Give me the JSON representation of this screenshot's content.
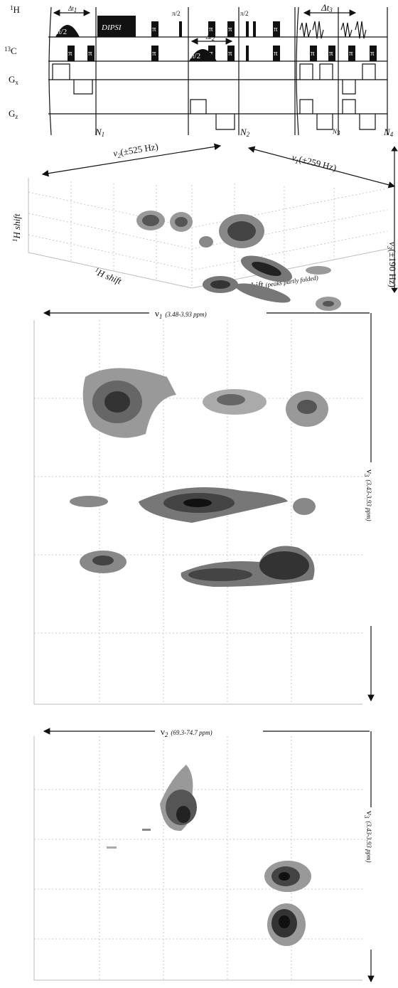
{
  "pulse_sequence": {
    "channels": [
      {
        "sup": "1",
        "name": "H"
      },
      {
        "sup": "13",
        "name": "C"
      },
      {
        "name": "G",
        "sub": "x"
      },
      {
        "name": "G",
        "sub": "z"
      }
    ],
    "delta_t1": {
      "name": "Δt",
      "sub": "1"
    },
    "delta_t2": {
      "name": "Δt",
      "sub": "2"
    },
    "delta_t3": {
      "name": "Δt",
      "sub": "3"
    },
    "pi_half": "π/2",
    "dipsi": "DIPSI",
    "pi": "π",
    "loops": [
      {
        "name": "N",
        "sub": "1"
      },
      {
        "name": "N",
        "sub": "2"
      },
      {
        "name": "N",
        "sub": "3"
      },
      {
        "name": "N",
        "sub": "4"
      }
    ]
  },
  "cube": {
    "axis_v2": {
      "name": "ν",
      "sub": "2",
      "range": "(±525 Hz)"
    },
    "axis_v1": {
      "name": "ν",
      "sub": "1",
      "range": "(±259 Hz)"
    },
    "axis_v3": {
      "name": "ν",
      "sub": "3",
      "range": "(±190 Hz)"
    },
    "vertical_label": {
      "sup": "1",
      "name": "H shift"
    },
    "left_label": {
      "sup": "1",
      "name": "H shift"
    },
    "right_label": {
      "sup": "13",
      "name": "C shift",
      "note": "(peaks partly folded)"
    }
  },
  "slice_1": {
    "axis_top": {
      "name": "ν",
      "sub": "1",
      "range": "(3.48-3.93 ppm)"
    },
    "axis_right": {
      "name": "ν",
      "sub": "3",
      "range": "(3.43-3.93 ppm)"
    }
  },
  "slice_2": {
    "axis_top": {
      "name": "ν",
      "sub": "2",
      "range": "(69.3-74.7 ppm)"
    },
    "axis_right": {
      "name": "ν",
      "sub": "3",
      "range": "(3.43-3.93 ppm)"
    }
  }
}
